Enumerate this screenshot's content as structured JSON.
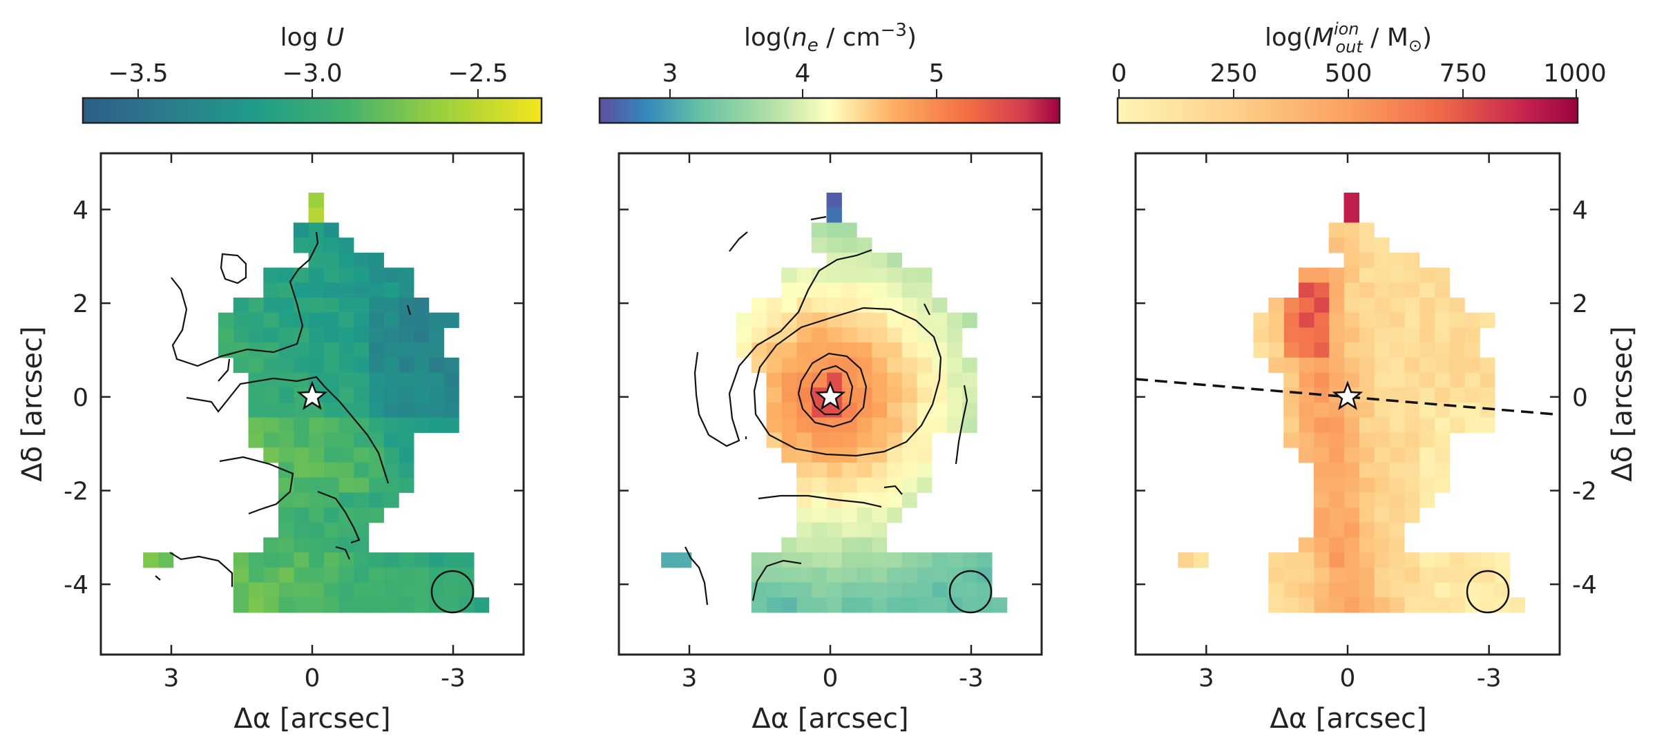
{
  "chart_data": [
    {
      "type": "heatmap",
      "colorbar": {
        "label_main": "log",
        "label_var": "U",
        "ticks": [
          "−3.5",
          "−3.0",
          "−2.5"
        ],
        "tick_values": [
          -3.5,
          -3.0,
          -2.5
        ],
        "range": [
          -3.7,
          -2.4
        ],
        "colormap": "viridis-like (blue to green to yellow)"
      },
      "xlabel_sym": "Δα",
      "xlabel_unit": "[arcsec]",
      "ylabel_sym": "Δδ",
      "ylabel_unit": "[arcsec]",
      "xticks": [
        "3",
        "0",
        "-3"
      ],
      "yticks": [
        "4",
        "2",
        "0",
        "-2",
        "-4"
      ],
      "xlim": [
        4.5,
        -4.5
      ],
      "ylim": [
        -5.5,
        5.2
      ],
      "y_axis_side": "left",
      "marker": {
        "symbol": "star",
        "x": 0,
        "y": 0
      },
      "beam_circle": true,
      "contours": true
    },
    {
      "type": "heatmap",
      "colorbar": {
        "label_prefix": "log(",
        "label_var": "n",
        "label_sub": "e",
        "label_mid": " / cm",
        "label_sup": "−3",
        "label_suffix": ")",
        "ticks": [
          "3",
          "4",
          "5"
        ],
        "tick_values": [
          3,
          4,
          5
        ],
        "range": [
          2.6,
          6.0
        ],
        "colormap": "spectral (blue to yellow to red)"
      },
      "xlabel_sym": "Δα",
      "xlabel_unit": "[arcsec]",
      "xticks": [
        "3",
        "0",
        "-3"
      ],
      "xlim": [
        4.5,
        -4.5
      ],
      "ylim": [
        -5.5,
        5.2
      ],
      "marker": {
        "symbol": "star",
        "x": 0,
        "y": 0
      },
      "beam_circle": true,
      "contours": true
    },
    {
      "type": "heatmap",
      "colorbar": {
        "label_prefix": "log(",
        "label_var": "M",
        "label_sup": "ion",
        "label_sub": "out",
        "label_mid": " / M",
        "label_sun": "⊙",
        "label_suffix": ")",
        "ticks": [
          "0",
          "250",
          "500",
          "750",
          "1000"
        ],
        "tick_values": [
          0,
          250,
          500,
          750,
          1000
        ],
        "range": [
          0,
          1000
        ],
        "colormap": "yellow-orange-red"
      },
      "xlabel_sym": "Δα",
      "xlabel_unit": "[arcsec]",
      "ylabel_sym": "Δδ",
      "ylabel_unit": "[arcsec]",
      "xticks": [
        "3",
        "0",
        "-3"
      ],
      "yticks": [
        "4",
        "2",
        "-2",
        "-4"
      ],
      "yticks_zero": "0",
      "xlim": [
        4.5,
        -4.5
      ],
      "ylim": [
        -5.5,
        5.2
      ],
      "y_axis_side": "right",
      "marker": {
        "symbol": "star",
        "x": 0,
        "y": 0
      },
      "beam_circle": true,
      "dashed_axis_line": {
        "x": [
          4.5,
          -4.5
        ],
        "y": [
          0.38,
          -0.38
        ]
      }
    }
  ]
}
